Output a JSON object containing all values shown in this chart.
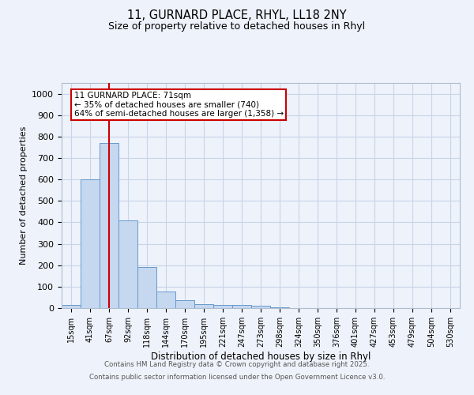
{
  "title_line1": "11, GURNARD PLACE, RHYL, LL18 2NY",
  "title_line2": "Size of property relative to detached houses in Rhyl",
  "xlabel": "Distribution of detached houses by size in Rhyl",
  "ylabel": "Number of detached properties",
  "categories": [
    "15sqm",
    "41sqm",
    "67sqm",
    "92sqm",
    "118sqm",
    "144sqm",
    "170sqm",
    "195sqm",
    "221sqm",
    "247sqm",
    "273sqm",
    "298sqm",
    "324sqm",
    "350sqm",
    "376sqm",
    "401sqm",
    "427sqm",
    "453sqm",
    "479sqm",
    "504sqm",
    "530sqm"
  ],
  "values": [
    13,
    600,
    770,
    410,
    192,
    76,
    38,
    18,
    13,
    13,
    10,
    5,
    0,
    0,
    0,
    0,
    0,
    0,
    0,
    0,
    0
  ],
  "bar_color": "#c5d8f0",
  "bar_edge_color": "#6699cc",
  "grid_color": "#c8d4e8",
  "background_color": "#eef2fa",
  "vline_x": 2,
  "vline_color": "#cc0000",
  "annotation_text": "11 GURNARD PLACE: 71sqm\n← 35% of detached houses are smaller (740)\n64% of semi-detached houses are larger (1,358) →",
  "annotation_box_color": "#ffffff",
  "annotation_box_edge": "#cc0000",
  "ylim": [
    0,
    1050
  ],
  "yticks": [
    0,
    100,
    200,
    300,
    400,
    500,
    600,
    700,
    800,
    900,
    1000
  ],
  "footer_line1": "Contains HM Land Registry data © Crown copyright and database right 2025.",
  "footer_line2": "Contains public sector information licensed under the Open Government Licence v3.0."
}
